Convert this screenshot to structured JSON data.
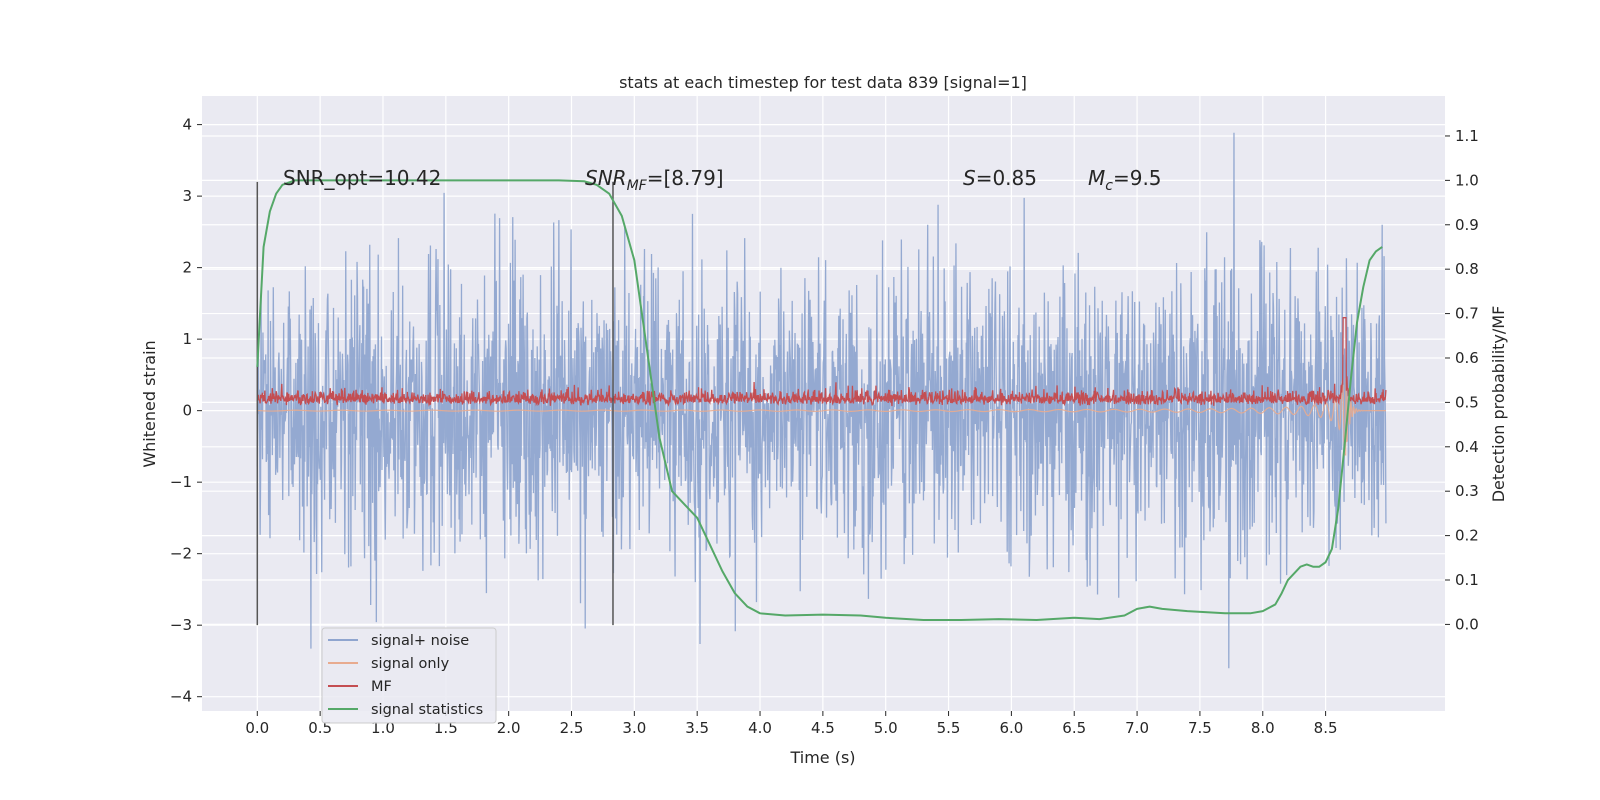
{
  "chart_data": {
    "type": "line",
    "title": "stats at each timestep for test data 839 [signal=1]",
    "xlabel": "Time (s)",
    "ylabel_left": "Whitened strain",
    "ylabel_right": "Detection probability/MF",
    "xlim": [
      -0.44,
      9.45
    ],
    "ylim_left": [
      -4.2,
      4.4
    ],
    "ylim_right": [
      -0.195,
      1.19
    ],
    "x_ticks": [
      "0.0",
      "0.5",
      "1.0",
      "1.5",
      "2.0",
      "2.5",
      "3.0",
      "3.5",
      "4.0",
      "4.5",
      "5.0",
      "5.5",
      "6.0",
      "6.5",
      "7.0",
      "7.5",
      "8.0",
      "8.5"
    ],
    "y_ticks_left": [
      "−4",
      "−3",
      "−2",
      "−1",
      "0",
      "1",
      "2",
      "3",
      "4"
    ],
    "y_ticks_right": [
      "0.0",
      "0.1",
      "0.2",
      "0.3",
      "0.4",
      "0.5",
      "0.6",
      "0.7",
      "0.8",
      "0.9",
      "1.0",
      "1.1"
    ],
    "annotations": {
      "snr_opt": "SNR_opt=10.42",
      "snr_mf_base": "SNR",
      "snr_mf_sub": "MF",
      "snr_mf_val": "=[8.79]",
      "s_base": "S",
      "s_val": "=0.85",
      "mc_base": "M",
      "mc_sub": "c",
      "mc_val": "=9.5"
    },
    "vlines_x": [
      0.0,
      2.83
    ],
    "series": [
      {
        "name": "signal+ noise",
        "color": "#8fa5cf",
        "axis": "left",
        "x_range": [
          0.0,
          8.98
        ],
        "approx_std": 1.0,
        "y_range_observed": [
          -3.8,
          4.0
        ]
      },
      {
        "name": "signal only",
        "color": "#e8ab8f",
        "axis": "left",
        "x_range": [
          0.0,
          8.98
        ],
        "description": "chirp growing toward merger near 8.65 s",
        "peak_amplitude": 1.3
      },
      {
        "name": "MF",
        "color": "#c44e52",
        "axis": "left",
        "x_range": [
          0.0,
          8.98
        ],
        "mean": 0.15,
        "spike_at_x": 8.65,
        "spike_value": 1.3
      },
      {
        "name": "signal statistics",
        "color": "#55a868",
        "axis": "right",
        "x": [
          0.0,
          0.05,
          0.1,
          0.15,
          0.2,
          0.3,
          0.5,
          1.0,
          1.5,
          2.0,
          2.4,
          2.6,
          2.7,
          2.8,
          2.9,
          3.0,
          3.1,
          3.2,
          3.3,
          3.4,
          3.5,
          3.6,
          3.7,
          3.8,
          3.9,
          4.0,
          4.2,
          4.5,
          4.8,
          5.0,
          5.3,
          5.6,
          5.9,
          6.2,
          6.5,
          6.7,
          6.9,
          7.0,
          7.1,
          7.2,
          7.4,
          7.7,
          7.9,
          8.0,
          8.1,
          8.15,
          8.2,
          8.3,
          8.35,
          8.4,
          8.45,
          8.5,
          8.55,
          8.6,
          8.65,
          8.7,
          8.75,
          8.8,
          8.85,
          8.9,
          8.95
        ],
        "y": [
          0.58,
          0.85,
          0.93,
          0.97,
          0.99,
          1.0,
          1.0,
          1.0,
          1.0,
          1.0,
          1.0,
          0.998,
          0.99,
          0.97,
          0.92,
          0.82,
          0.62,
          0.42,
          0.3,
          0.27,
          0.24,
          0.18,
          0.12,
          0.07,
          0.04,
          0.025,
          0.02,
          0.022,
          0.02,
          0.015,
          0.01,
          0.01,
          0.012,
          0.01,
          0.015,
          0.012,
          0.02,
          0.035,
          0.04,
          0.035,
          0.03,
          0.025,
          0.025,
          0.03,
          0.045,
          0.07,
          0.1,
          0.13,
          0.135,
          0.13,
          0.13,
          0.14,
          0.17,
          0.26,
          0.4,
          0.55,
          0.68,
          0.76,
          0.82,
          0.84,
          0.85
        ]
      }
    ],
    "legend_position": "lower-left"
  }
}
